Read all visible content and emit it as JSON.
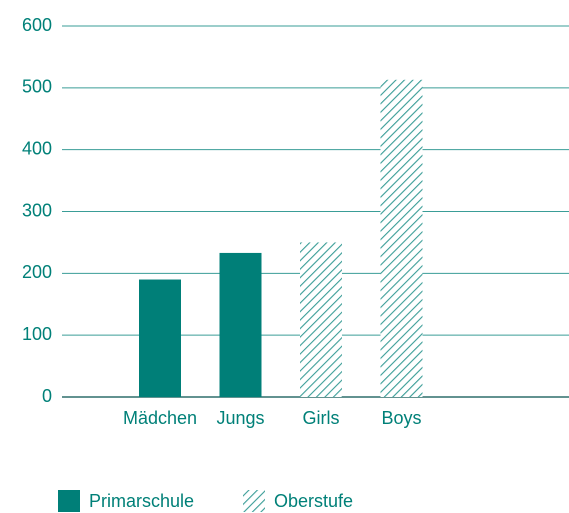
{
  "chart_data": {
    "type": "bar",
    "categories": [
      "Mädchen",
      "Jungs",
      "Girls",
      "Boys"
    ],
    "series": [
      {
        "name": "Primarschule",
        "color": "#007f78",
        "fill": "solid",
        "values": [
          190,
          233,
          null,
          null
        ]
      },
      {
        "name": "Oberstufe",
        "color": "#007f78",
        "fill": "hatch",
        "values": [
          null,
          null,
          250,
          513
        ]
      }
    ],
    "ylim": [
      0,
      600
    ],
    "yticks": [
      0,
      100,
      200,
      300,
      400,
      500,
      600
    ],
    "grid": true,
    "legend": "bottom"
  }
}
